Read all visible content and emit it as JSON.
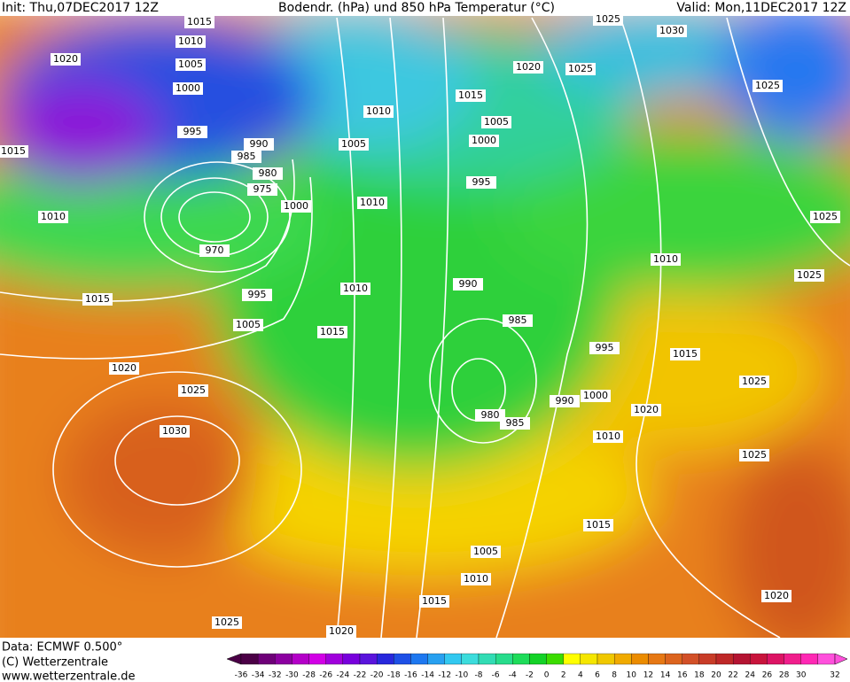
{
  "header": {
    "init": "Init: Thu,07DEC2017 12Z",
    "title": "Bodendr. (hPa) und 850 hPa Temperatur (°C)",
    "valid": "Valid: Mon,11DEC2017 12Z"
  },
  "footer": {
    "data": "Data: ECMWF  0.500°",
    "copyright": "(C) Wetterzentrale",
    "url": "www.wetterzentrale.de"
  },
  "isobar_labels": [
    1015,
    1010,
    1005,
    1000,
    995,
    990,
    985,
    980,
    975,
    970,
    1000,
    1020,
    1015,
    1010,
    1015,
    995,
    1005,
    1020,
    1025,
    1030,
    1025,
    1020,
    1015,
    1010,
    1010,
    1005,
    1010,
    1015,
    1005,
    1000,
    995,
    990,
    985,
    980,
    985,
    990,
    995,
    1000,
    1010,
    1015,
    1020,
    1015,
    1025,
    1025,
    1020,
    1010,
    1025,
    1025,
    1025,
    1030,
    1025,
    1020,
    1025,
    1010,
    1015,
    1005
  ],
  "colorbar": {
    "ticks": [
      -36,
      -34,
      -32,
      -30,
      -28,
      -26,
      -24,
      -22,
      -20,
      -18,
      -16,
      -14,
      -12,
      -10,
      -8,
      -6,
      -4,
      -2,
      0,
      2,
      4,
      6,
      8,
      10,
      12,
      14,
      16,
      18,
      20,
      22,
      24,
      26,
      28,
      30,
      32
    ],
    "colors": [
      "#4b0046",
      "#6e0078",
      "#8c00a0",
      "#b400c8",
      "#d200e6",
      "#a000dc",
      "#7800dc",
      "#5a14dc",
      "#2828dc",
      "#1e50e6",
      "#1e78f0",
      "#28a0f0",
      "#32c8f0",
      "#3cdcdc",
      "#32dcb4",
      "#28dc8c",
      "#1edc5a",
      "#14d228",
      "#3cdc00",
      "#ffff00",
      "#f5e600",
      "#f0c800",
      "#f0aa00",
      "#eb8c00",
      "#e67814",
      "#dc641e",
      "#d25028",
      "#c83c28",
      "#be2828",
      "#b41432",
      "#c8143c",
      "#dc1464",
      "#f01e8c",
      "#ff28b4",
      "#ff50dc"
    ]
  }
}
